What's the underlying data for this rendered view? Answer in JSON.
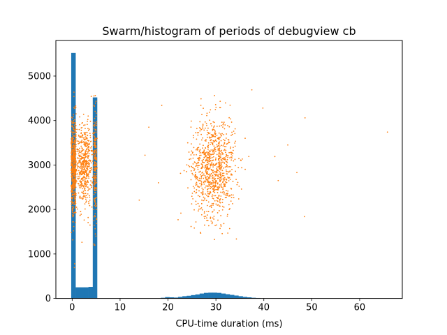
{
  "chart_data": {
    "type": "histogram+scatter",
    "title": "Swarm/histogram of periods of debugview cb",
    "xlabel": "CPU-time duration (ms)",
    "ylabel": "",
    "xlim": [
      -3.4,
      68.9
    ],
    "ylim": [
      0,
      5800
    ],
    "xticks": [
      0,
      10,
      20,
      30,
      40,
      50,
      60
    ],
    "yticks": [
      0,
      1000,
      2000,
      3000,
      4000,
      5000
    ],
    "grid": false,
    "legend": "none",
    "colors": {
      "histogram": "#1f77b4",
      "scatter": "#ff7f0e"
    },
    "histogram": {
      "bin_width": 0.9,
      "bins": [
        {
          "x0": -0.2,
          "count": 5520
        },
        {
          "x0": 0.7,
          "count": 250
        },
        {
          "x0": 1.6,
          "count": 250
        },
        {
          "x0": 2.5,
          "count": 250
        },
        {
          "x0": 3.4,
          "count": 260
        },
        {
          "x0": 4.3,
          "count": 4520
        },
        {
          "x0": 18.5,
          "count": 15
        },
        {
          "x0": 19.4,
          "count": 30
        },
        {
          "x0": 20.3,
          "count": 25
        },
        {
          "x0": 21.2,
          "count": 20
        },
        {
          "x0": 22.1,
          "count": 35
        },
        {
          "x0": 23.0,
          "count": 50
        },
        {
          "x0": 23.9,
          "count": 60
        },
        {
          "x0": 24.8,
          "count": 75
        },
        {
          "x0": 25.7,
          "count": 90
        },
        {
          "x0": 26.6,
          "count": 110
        },
        {
          "x0": 27.5,
          "count": 125
        },
        {
          "x0": 28.4,
          "count": 130
        },
        {
          "x0": 29.3,
          "count": 130
        },
        {
          "x0": 30.2,
          "count": 125
        },
        {
          "x0": 31.1,
          "count": 110
        },
        {
          "x0": 32.0,
          "count": 95
        },
        {
          "x0": 32.9,
          "count": 80
        },
        {
          "x0": 33.8,
          "count": 65
        },
        {
          "x0": 34.7,
          "count": 50
        },
        {
          "x0": 35.6,
          "count": 35
        },
        {
          "x0": 36.5,
          "count": 25
        },
        {
          "x0": 37.4,
          "count": 15
        },
        {
          "x0": 38.3,
          "count": 10
        }
      ]
    },
    "scatter": {
      "description": "swarm of periods; values are x in ms, y in period units",
      "clusters": [
        {
          "x_center": 0.3,
          "x_spread": 0.5,
          "y_mean": 3000,
          "y_sd": 550,
          "n": 500,
          "y_min": 500,
          "y_max": 5100
        },
        {
          "x_center": 2.5,
          "x_spread": 1.8,
          "y_mean": 3000,
          "y_sd": 450,
          "n": 520,
          "y_min": 1200,
          "y_max": 4600
        },
        {
          "x_center": 4.8,
          "x_spread": 0.3,
          "y_mean": 3000,
          "y_sd": 700,
          "n": 200,
          "y_min": 1200,
          "y_max": 5050
        },
        {
          "x_center": 29.5,
          "x_spread": 4.6,
          "y_mean": 2950,
          "y_sd": 560,
          "n": 950,
          "y_min": 1050,
          "y_max": 4700
        }
      ],
      "outliers": [
        {
          "x": 65.8,
          "y": 3740
        },
        {
          "x": 48.6,
          "y": 4060
        },
        {
          "x": 48.5,
          "y": 1840
        },
        {
          "x": 45.0,
          "y": 3450
        },
        {
          "x": 46.9,
          "y": 2830
        },
        {
          "x": 43.0,
          "y": 2650
        },
        {
          "x": 42.3,
          "y": 3190
        },
        {
          "x": 39.8,
          "y": 4280
        },
        {
          "x": 37.5,
          "y": 4690
        },
        {
          "x": 14.0,
          "y": 2210
        },
        {
          "x": 15.2,
          "y": 3220
        },
        {
          "x": 16.0,
          "y": 3850
        },
        {
          "x": 18.7,
          "y": 4340
        },
        {
          "x": 18.0,
          "y": 2600
        }
      ]
    }
  }
}
